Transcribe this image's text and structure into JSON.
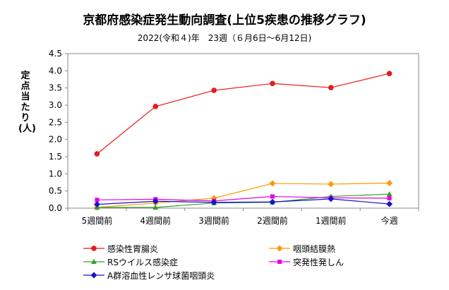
{
  "chart_data": {
    "type": "line",
    "title": "京都府感染症発生動向調査(上位5疾患の推移グラフ)",
    "subtitle": "2022(令和４)年　23週（６月6日～6月12日)",
    "ylabel": "定点当たり　(人)",
    "xlabel": "",
    "categories": [
      "5週間前",
      "4週間前",
      "3週間前",
      "2週間前",
      "1週間前",
      "今週"
    ],
    "yticks": [
      "0.0",
      "0.5",
      "1.0",
      "1.5",
      "2.0",
      "2.5",
      "3.0",
      "3.5",
      "4.0",
      "4.5"
    ],
    "ylim": [
      0,
      4.5
    ],
    "grid": false,
    "legend_position": "bottom",
    "series": [
      {
        "name": "感染性胃腸炎",
        "color": "#e8191c",
        "marker": "circle",
        "values": [
          1.58,
          2.96,
          3.43,
          3.63,
          3.51,
          3.92
        ]
      },
      {
        "name": "咽頭結膜熱",
        "color": "#ff9900",
        "marker": "diamond",
        "values": [
          0.02,
          0.15,
          0.29,
          0.72,
          0.7,
          0.73
        ]
      },
      {
        "name": "RSウイルス感染症",
        "color": "#33a02c",
        "marker": "triangle",
        "values": [
          0.02,
          0.02,
          0.15,
          0.17,
          0.34,
          0.41
        ]
      },
      {
        "name": "突発性発しん",
        "color": "#e600e6",
        "marker": "square",
        "values": [
          0.24,
          0.26,
          0.21,
          0.34,
          0.3,
          0.29
        ]
      },
      {
        "name": "A群溶血性レンサ球菌咽頭炎",
        "color": "#1414c8",
        "marker": "diamond",
        "values": [
          0.11,
          0.2,
          0.17,
          0.18,
          0.27,
          0.12
        ]
      }
    ]
  }
}
